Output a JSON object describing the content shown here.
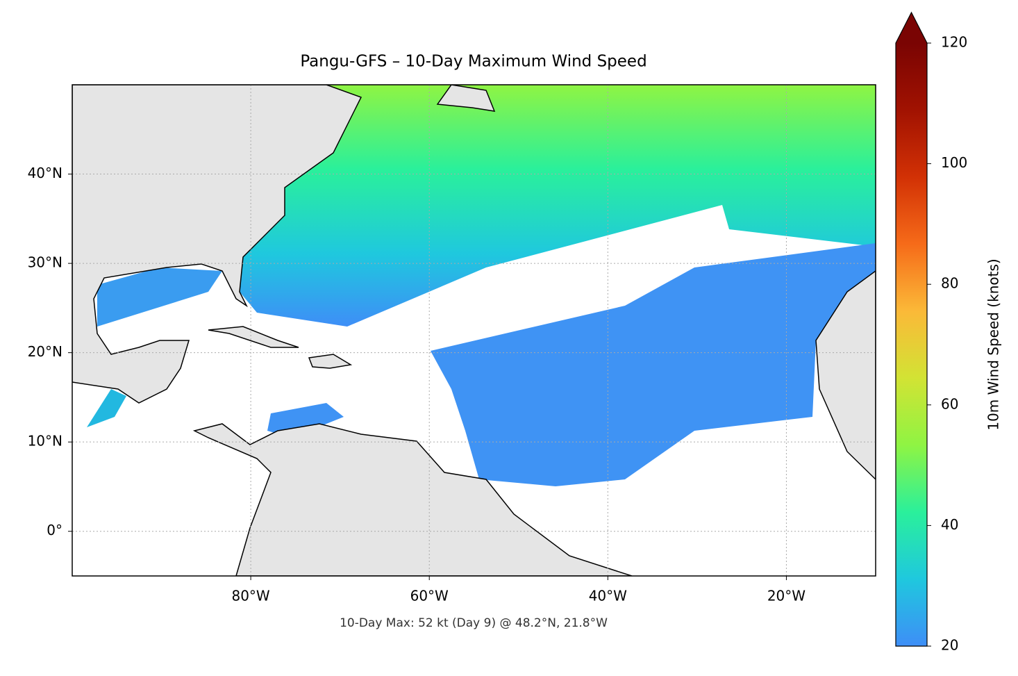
{
  "chart_data": {
    "type": "map",
    "title": "Pangu-GFS – 10-Day Maximum Wind Speed",
    "annotation": "10-Day Max: 52 kt (Day 9) @ 48.2°N, 21.8°W",
    "xlim": [
      -100,
      -10
    ],
    "ylim": [
      -5,
      50
    ],
    "xticks": [
      {
        "value": -80,
        "label": "80°W"
      },
      {
        "value": -60,
        "label": "60°W"
      },
      {
        "value": -40,
        "label": "40°W"
      },
      {
        "value": -20,
        "label": "20°W"
      }
    ],
    "yticks": [
      {
        "value": 0,
        "label": "0°"
      },
      {
        "value": 10,
        "label": "10°N"
      },
      {
        "value": 20,
        "label": "20°N"
      },
      {
        "value": 30,
        "label": "30°N"
      },
      {
        "value": 40,
        "label": "40°N"
      }
    ],
    "grid": true,
    "colorbar": {
      "label": "10m Wind Speed (knots)",
      "lim": [
        20,
        120
      ],
      "ticks": [
        20,
        40,
        60,
        80,
        100,
        120
      ],
      "colors": [
        "#3e8ef7",
        "#1fc8de",
        "#2af09b",
        "#8ff443",
        "#d2e334",
        "#fbb938",
        "#f66b19",
        "#d23105",
        "#a11201",
        "#7a0403"
      ],
      "extend": "max"
    }
  }
}
